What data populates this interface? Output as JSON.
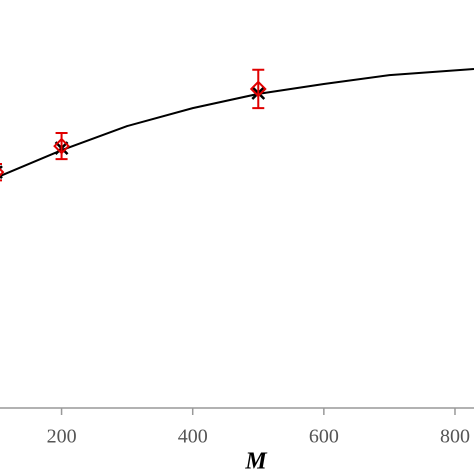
{
  "chart_data": {
    "type": "scatter",
    "x_label": "M",
    "xlim": [
      100,
      829
    ],
    "xticks": [
      200,
      400,
      600,
      800
    ],
    "ylim": [
      0,
      1
    ],
    "axis_color": "#999999",
    "series": [
      {
        "marker": "line",
        "color": "#000000",
        "x": [
          107,
          200,
          300,
          400,
          500,
          600,
          700,
          829
        ],
        "values": [
          0.569,
          0.632,
          0.691,
          0.735,
          0.77,
          0.794,
          0.816,
          0.831
        ]
      },
      {
        "marker": "cross",
        "color": "#000000",
        "x": [
          100,
          200,
          500
        ],
        "values": [
          0.578,
          0.637,
          0.772
        ]
      },
      {
        "marker": "diamond",
        "color": "#e00000",
        "x": [
          100,
          200,
          500
        ],
        "values": [
          0.578,
          0.642,
          0.782
        ],
        "errors": [
          0.02,
          0.032,
          0.047
        ]
      }
    ]
  }
}
